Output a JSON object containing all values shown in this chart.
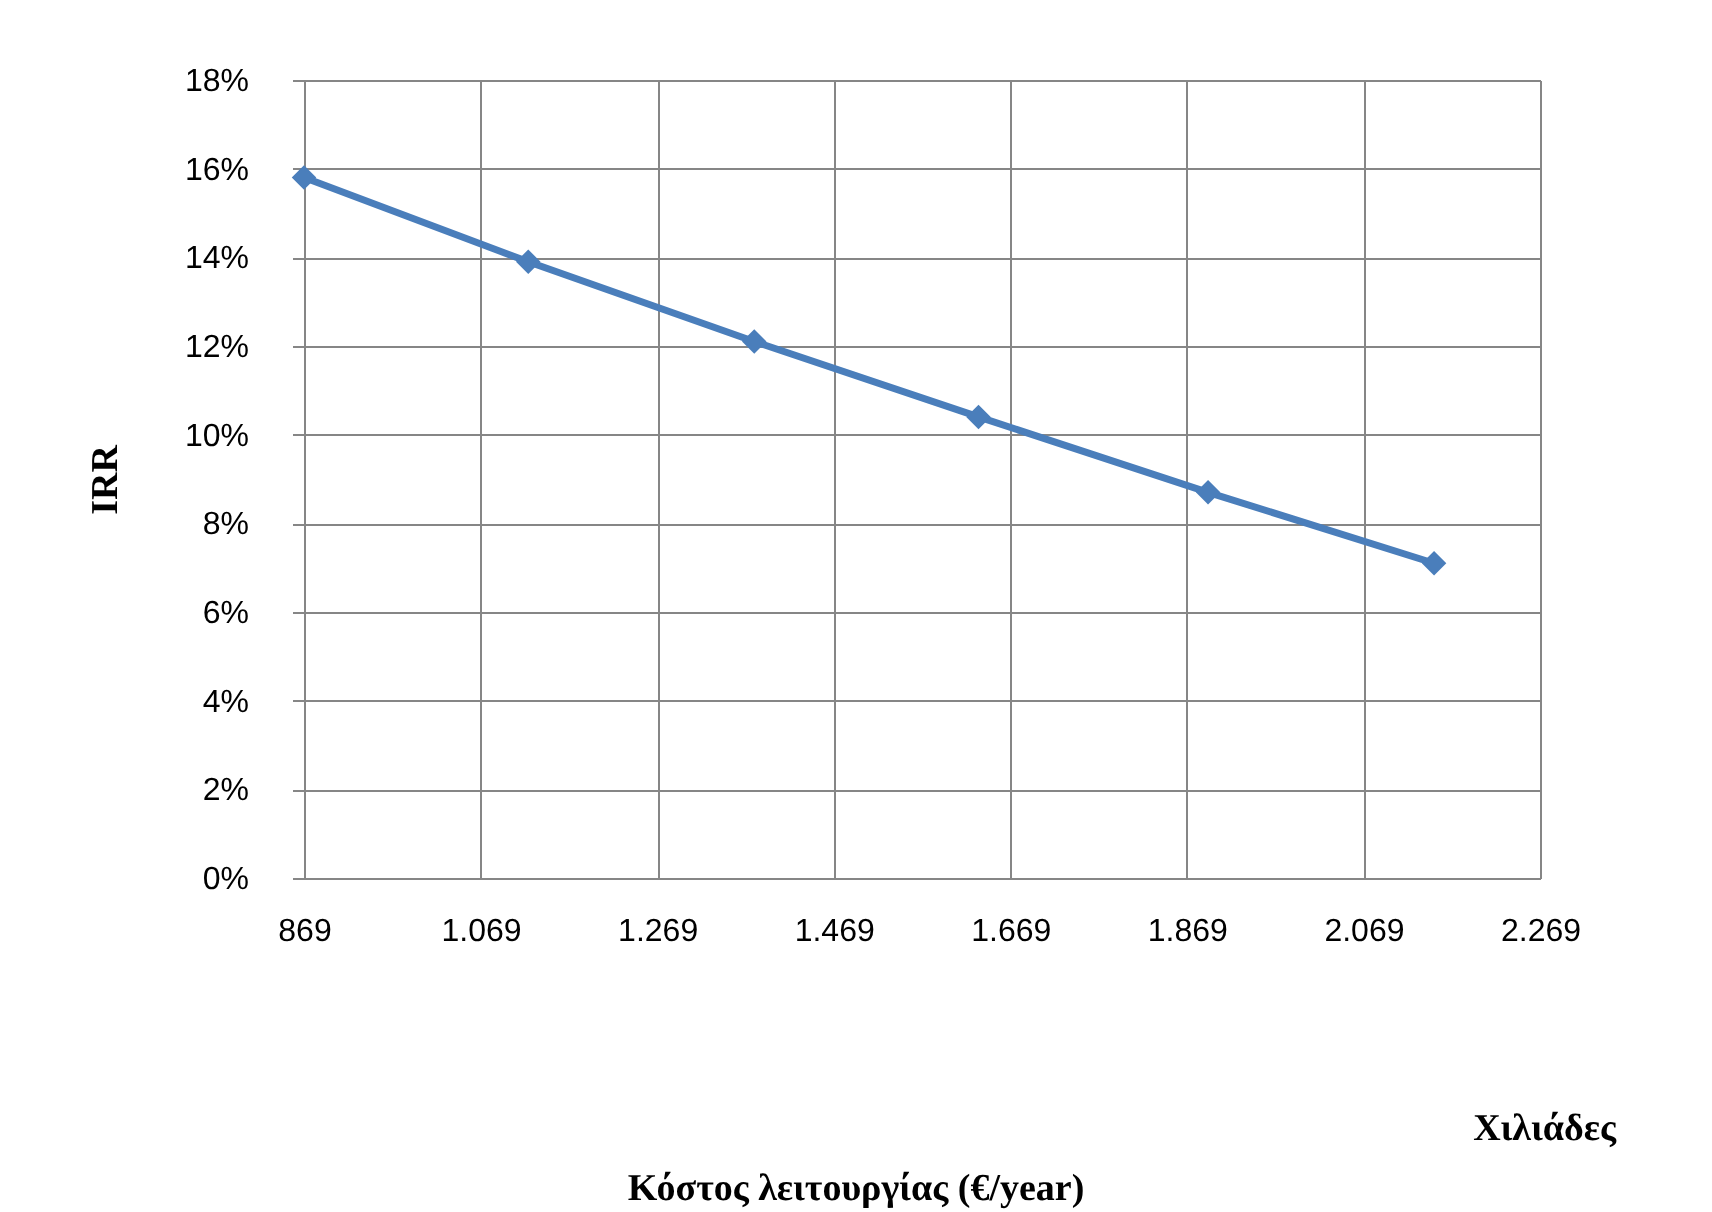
{
  "chart_data": {
    "type": "line",
    "ylabel": "IRR",
    "annotations": [
      "Χιλιάδες",
      "Κόστος λειτουργίας (€/year)"
    ],
    "x": [
      869,
      1123,
      1379,
      1633,
      1893,
      2149
    ],
    "series": [
      {
        "color": "#4a7ebb",
        "values": [
          15.8,
          13.9,
          12.1,
          10.4,
          8.7,
          7.1
        ]
      }
    ],
    "xlim": [
      869,
      2269
    ],
    "xticks": [
      869,
      {
        "value": 1069,
        "label": "1.069"
      },
      {
        "value": 1269,
        "label": "1.269"
      },
      {
        "value": 1469,
        "label": "1.469"
      },
      {
        "value": 1669,
        "label": "1.669"
      },
      {
        "value": 1869,
        "label": "1.869"
      },
      {
        "value": 2069,
        "label": "2.069"
      },
      {
        "value": 2269,
        "label": "2.269"
      }
    ],
    "ylim": [
      0,
      18
    ],
    "yticks": [
      {
        "value": 0,
        "label": "0%"
      },
      {
        "value": 2,
        "label": "2%"
      },
      {
        "value": 4,
        "label": "4%"
      },
      {
        "value": 6,
        "label": "6%"
      },
      {
        "value": 8,
        "label": "8%"
      },
      {
        "value": 10,
        "label": "10%"
      },
      {
        "value": 12,
        "label": "12%"
      },
      {
        "value": 14,
        "label": "14%"
      },
      {
        "value": 16,
        "label": "16%"
      },
      {
        "value": 18,
        "label": "18%"
      }
    ],
    "grid": true,
    "marker": "diamond",
    "line_style": "solid"
  }
}
